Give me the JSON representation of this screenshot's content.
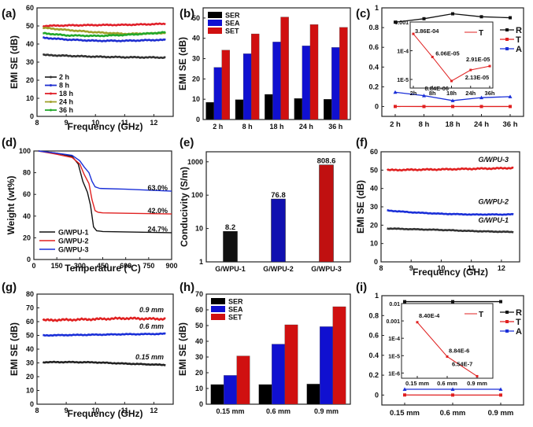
{
  "chart_data": [
    {
      "id": "a",
      "panel_label": "(a)",
      "type": "line",
      "xlabel": "Frequency (GHz)",
      "ylabel": "EMI SE (dB)",
      "xlim": [
        8,
        12.5
      ],
      "ylim": [
        0,
        60
      ],
      "xticks": [
        8,
        9,
        10,
        11,
        12
      ],
      "yticks": [
        0,
        10,
        20,
        30,
        40,
        50,
        60
      ],
      "legend_position": "bottom-left",
      "series": [
        {
          "name": "2 h",
          "color": "#333333",
          "x": [
            8.2,
            9,
            10,
            11,
            12,
            12.4
          ],
          "y": [
            34,
            33.5,
            33,
            32.7,
            32.6,
            32.5
          ]
        },
        {
          "name": "8 h",
          "color": "#1f2fd0",
          "x": [
            8.2,
            9,
            10,
            11,
            12,
            12.4
          ],
          "y": [
            43.5,
            42.5,
            41.8,
            41.8,
            42.2,
            42.3
          ]
        },
        {
          "name": "18 h",
          "color": "#e0202a",
          "x": [
            8.2,
            9,
            10,
            11,
            12,
            12.4
          ],
          "y": [
            50,
            50.3,
            50.5,
            50.6,
            51,
            51.2
          ]
        },
        {
          "name": "24 h",
          "color": "#a0a02a",
          "x": [
            8.2,
            9,
            10,
            11,
            12,
            12.4
          ],
          "y": [
            49,
            47.8,
            46.5,
            45.6,
            45.9,
            46.2
          ]
        },
        {
          "name": "36 h",
          "color": "#22a82a",
          "x": [
            8.2,
            9,
            10,
            11,
            12,
            12.4
          ],
          "y": [
            46,
            44.8,
            44.5,
            45,
            46,
            46.5
          ]
        }
      ]
    },
    {
      "id": "b",
      "panel_label": "(b)",
      "type": "bar",
      "ylabel": "EMI SE (dB)",
      "ylim": [
        0,
        55
      ],
      "yticks": [
        0,
        10,
        20,
        30,
        40,
        50
      ],
      "categories": [
        "2 h",
        "8 h",
        "18 h",
        "24 h",
        "36 h"
      ],
      "legend_position": "top-left",
      "series": [
        {
          "name": "SER",
          "color": "#000000",
          "values": [
            8.5,
            9.8,
            12.4,
            10.4,
            10
          ]
        },
        {
          "name": "SEA",
          "color": "#1010d0",
          "values": [
            25.7,
            32.4,
            38.2,
            36.3,
            35.5
          ]
        },
        {
          "name": "SET",
          "color": "#d01010",
          "values": [
            34.2,
            42.2,
            50.5,
            46.8,
            45.4
          ]
        }
      ]
    },
    {
      "id": "c",
      "panel_label": "(c)",
      "type": "line",
      "ylim": [
        -0.1,
        1.0
      ],
      "yticks": [
        0.0,
        0.2,
        0.4,
        0.6,
        0.8,
        1.0
      ],
      "categories": [
        "2 h",
        "8 h",
        "18 h",
        "24 h",
        "36 h"
      ],
      "legend_position": "right",
      "series": [
        {
          "name": "R",
          "color": "#111111",
          "values": [
            0.855,
            0.89,
            0.94,
            0.91,
            0.9
          ]
        },
        {
          "name": "T",
          "color": "#e02020",
          "values": [
            0.0004,
            6e-05,
            1e-05,
            2e-05,
            3e-05
          ]
        },
        {
          "name": "A",
          "color": "#1a2fd8",
          "values": [
            0.145,
            0.11,
            0.06,
            0.09,
            0.1
          ]
        }
      ],
      "inset": {
        "type": "line",
        "yscale": "log",
        "ylim": [
          5e-06,
          0.001
        ],
        "yticks": [
          "1E-5",
          "1E-4",
          "0.001"
        ],
        "categories": [
          "2h",
          "8h",
          "18h",
          "24h",
          "36h"
        ],
        "legend": "T",
        "series": [
          {
            "name": "T",
            "color": "#e02020",
            "values": [
              0.000386,
              6.06e-05,
              8.84e-06,
              2.13e-05,
              2.91e-05
            ]
          }
        ],
        "data_labels": [
          "3.86E-04",
          "6.06E-05",
          "8.84E-06",
          "2.13E-05",
          "2.91E-05"
        ]
      }
    },
    {
      "id": "d",
      "panel_label": "(d)",
      "type": "line",
      "xlabel": "Temperature (°C)",
      "ylabel": "Weight (wt%)",
      "xlim": [
        0,
        900
      ],
      "ylim": [
        0,
        100
      ],
      "xticks": [
        0,
        150,
        300,
        450,
        600,
        750,
        900
      ],
      "yticks": [
        0,
        20,
        40,
        60,
        80,
        100
      ],
      "legend_position": "bottom-left",
      "series": [
        {
          "name": "G/WPU-1",
          "color": "#111111",
          "x": [
            30,
            150,
            250,
            290,
            320,
            350,
            370,
            390,
            410,
            450,
            600,
            900
          ],
          "y": [
            100,
            98,
            95,
            88,
            72,
            62,
            50,
            30,
            26.5,
            25.8,
            25.4,
            24.7
          ]
        },
        {
          "name": "G/WPU-2",
          "color": "#e02020",
          "x": [
            30,
            150,
            250,
            300,
            330,
            360,
            380,
            400,
            420,
            450,
            600,
            900
          ],
          "y": [
            100,
            97,
            94,
            88,
            78,
            70,
            55,
            45,
            43.5,
            43,
            42.6,
            42.0
          ]
        },
        {
          "name": "G/WPU-3",
          "color": "#1a2fd8",
          "x": [
            30,
            150,
            250,
            300,
            330,
            360,
            380,
            400,
            430,
            450,
            600,
            900
          ],
          "y": [
            100,
            98,
            96,
            91,
            85,
            80,
            72,
            67,
            65.5,
            65.4,
            64.8,
            63.0
          ]
        }
      ],
      "annotations": [
        {
          "text": "63.0%",
          "color": "#1a2fd8"
        },
        {
          "text": "42.0%",
          "color": "#e02020"
        },
        {
          "text": "24.7%",
          "color": "#111111"
        }
      ]
    },
    {
      "id": "e",
      "panel_label": "(e)",
      "type": "bar",
      "ylabel": "Conducivity (S/m)",
      "yscale": "log",
      "ylim": [
        1,
        2000
      ],
      "yticks": [
        1,
        10,
        100,
        1000
      ],
      "categories": [
        "G/WPU-1",
        "G/WPU-2",
        "G/WPU-3"
      ],
      "values": [
        8.2,
        76.8,
        808.6
      ],
      "colors": [
        "#111111",
        "#1010b0",
        "#c01010"
      ],
      "data_labels": [
        "8.2",
        "76.8",
        "808.6"
      ]
    },
    {
      "id": "f",
      "panel_label": "(f)",
      "type": "line",
      "xlabel": "Frequency (GHz)",
      "ylabel": "EMI SE (dB)",
      "xlim": [
        8,
        12.5
      ],
      "ylim": [
        0,
        60
      ],
      "xticks": [
        8,
        9,
        10,
        11,
        12
      ],
      "yticks": [
        0,
        10,
        20,
        30,
        40,
        50,
        60
      ],
      "series": [
        {
          "name": "G/WPU-3",
          "color": "#e02020",
          "x": [
            8.2,
            9,
            10,
            11,
            12,
            12.4
          ],
          "y": [
            50,
            50.2,
            50.4,
            50.7,
            51,
            51.2
          ]
        },
        {
          "name": "G/WPU-2",
          "color": "#1a2fd8",
          "x": [
            8.2,
            9,
            10,
            11,
            12,
            12.4
          ],
          "y": [
            28,
            27,
            26.2,
            25.8,
            25.8,
            25.9
          ]
        },
        {
          "name": "G/WPU-1",
          "color": "#333333",
          "x": [
            8.2,
            9,
            10,
            11,
            12,
            12.4
          ],
          "y": [
            18.2,
            17.8,
            17.4,
            16.8,
            16.4,
            16.3
          ]
        }
      ],
      "annotations": [
        {
          "text": "G/WPU-3",
          "color": "#e02020"
        },
        {
          "text": "G/WPU-2",
          "color": "#1a2fd8"
        },
        {
          "text": "G/WPU-1",
          "color": "#333333"
        }
      ]
    },
    {
      "id": "g",
      "panel_label": "(g)",
      "type": "line",
      "xlabel": "Frequency (GHz)",
      "ylabel": "EMI SE (dB)",
      "xlim": [
        8,
        12.5
      ],
      "ylim": [
        0,
        80
      ],
      "xticks": [
        8,
        9,
        10,
        11,
        12
      ],
      "yticks": [
        0,
        10,
        20,
        30,
        40,
        50,
        60,
        70,
        80
      ],
      "series": [
        {
          "name": "0.9 mm",
          "color": "#e02020",
          "x": [
            8.2,
            9,
            10,
            11,
            12,
            12.4
          ],
          "y": [
            61,
            61.3,
            61.8,
            62.4,
            62,
            62
          ]
        },
        {
          "name": "0.6 mm",
          "color": "#1a2fd8",
          "x": [
            8.2,
            9,
            10,
            11,
            12,
            12.4
          ],
          "y": [
            50,
            50.2,
            50.5,
            50.8,
            51,
            51.2
          ]
        },
        {
          "name": "0.15 mm",
          "color": "#222222",
          "x": [
            8.2,
            9,
            10,
            11,
            12,
            12.4
          ],
          "y": [
            30.5,
            30.6,
            30.4,
            29.5,
            28.8,
            28.5
          ]
        }
      ],
      "annotations": [
        {
          "text": "0.9 mm",
          "color": "#e02020"
        },
        {
          "text": "0.6 mm",
          "color": "#1a2fd8"
        },
        {
          "text": "0.15 mm",
          "color": "#222222"
        }
      ]
    },
    {
      "id": "h",
      "panel_label": "(h)",
      "type": "bar",
      "ylabel": "EMI SE (dB)",
      "ylim": [
        0,
        70
      ],
      "yticks": [
        0,
        10,
        20,
        30,
        40,
        50,
        60,
        70
      ],
      "categories": [
        "0.15 mm",
        "0.6 mm",
        "0.9 mm"
      ],
      "legend_position": "top-left",
      "series": [
        {
          "name": "SER",
          "color": "#000000",
          "values": [
            12.5,
            12.5,
            12.8
          ]
        },
        {
          "name": "SEA",
          "color": "#1010d0",
          "values": [
            18.3,
            38.2,
            49.3
          ]
        },
        {
          "name": "SET",
          "color": "#d01010",
          "values": [
            30.7,
            50.5,
            62
          ]
        }
      ]
    },
    {
      "id": "i",
      "panel_label": "(i)",
      "type": "line",
      "ylim": [
        -0.1,
        1.0
      ],
      "yticks": [
        0.0,
        0.2,
        0.4,
        0.6,
        0.8,
        1.0
      ],
      "categories": [
        "0.15 mm",
        "0.6 mm",
        "0.9 mm"
      ],
      "legend_position": "right",
      "series": [
        {
          "name": "R",
          "color": "#111111",
          "values": [
            0.94,
            0.94,
            0.94
          ]
        },
        {
          "name": "T",
          "color": "#e02020",
          "values": [
            0.00084,
            8.84e-06,
            6.54e-07
          ]
        },
        {
          "name": "A",
          "color": "#1a2fd8",
          "values": [
            0.058,
            0.058,
            0.058
          ]
        }
      ],
      "inset": {
        "type": "line",
        "yscale": "log",
        "ylim": [
          5e-07,
          0.01
        ],
        "yticks": [
          "1E-6",
          "1E-5",
          "1E-4",
          "0.001",
          "0.01"
        ],
        "categories": [
          "0.15 mm",
          "0.6 mm",
          "0.9 mm"
        ],
        "legend": "T",
        "series": [
          {
            "name": "T",
            "color": "#e02020",
            "values": [
              0.00084,
              8.84e-06,
              6.54e-07
            ]
          }
        ],
        "data_labels": [
          "8.40E-4",
          "8.84E-6",
          "6.54E-7"
        ]
      }
    }
  ]
}
